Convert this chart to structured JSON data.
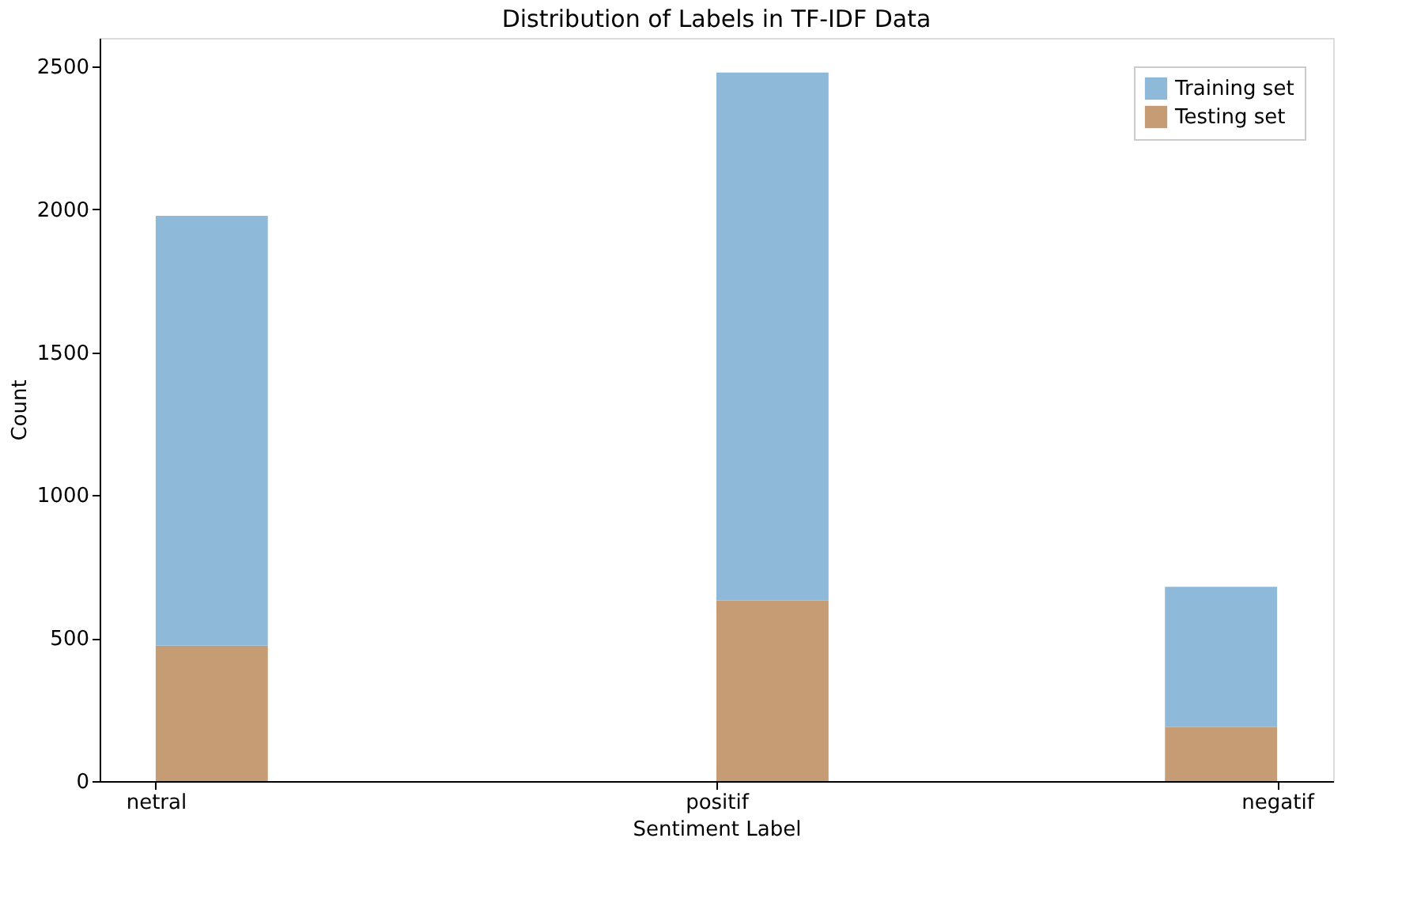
{
  "chart_data": {
    "type": "bar",
    "title": "Distribution of Labels in TF-IDF Data",
    "xlabel": "Sentiment Label",
    "ylabel": "Count",
    "categories": [
      "netral",
      "positif",
      "negatif"
    ],
    "stacked": true,
    "series": [
      {
        "name": "Testing set",
        "color": "#c59c73",
        "values": [
          474,
          631,
          189
        ]
      },
      {
        "name": "Training set",
        "color": "#8fb9d9",
        "values": [
          1504,
          1848,
          491
        ]
      }
    ],
    "ylim": [
      0,
      2600
    ],
    "yticks": [
      0,
      500,
      1000,
      1500,
      2000,
      2500
    ],
    "grid": false,
    "legend": "top right"
  }
}
